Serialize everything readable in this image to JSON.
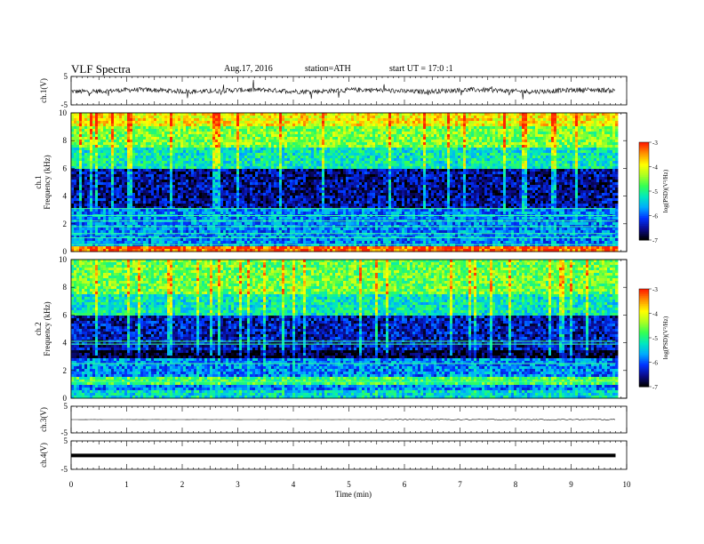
{
  "header": {
    "title": "VLF Spectra",
    "date": "Aug.17, 2016",
    "station": "station=ATH",
    "start": "start UT =  17:0  :1"
  },
  "colors": {
    "colormap": [
      "#000000",
      "#0b0b8c",
      "#0033ff",
      "#00aaff",
      "#00e8c0",
      "#33ff55",
      "#aaff22",
      "#ffff00",
      "#ff9900",
      "#ff2200",
      "#ffffff"
    ]
  },
  "chart_data": [
    {
      "type": "line",
      "name": "ch1-waveform",
      "ylabel": "ch.1(V)",
      "ylim": [
        -5,
        5
      ],
      "yticks": [
        "5",
        "-5"
      ],
      "x_range_min": [
        0,
        9.8
      ],
      "baseline_v": 0,
      "noise_amplitude_v": 1.2
    },
    {
      "type": "heatmap",
      "name": "ch1-spectrogram",
      "ylabel": [
        "ch.1",
        "Frequency (kHz)"
      ],
      "ylim": [
        0,
        10
      ],
      "yticks": [
        "10",
        "8",
        "6",
        "4",
        "2",
        "0"
      ],
      "x_range_min": [
        0,
        9.8
      ],
      "colorbar": {
        "label": "log(PSD)(V²/Hz)",
        "range": [
          -7,
          -3
        ],
        "ticks": [
          "-3",
          "-4",
          "-5",
          "-6",
          "-7"
        ]
      },
      "bands_khz": [
        {
          "from": 0,
          "to": 0.3,
          "level": 0.95
        },
        {
          "from": 3.0,
          "to": 6.0,
          "level": 0.12
        },
        {
          "from": 6.0,
          "to": 7.5,
          "level": 0.45
        },
        {
          "from": 7.5,
          "to": 9.0,
          "level": 0.62
        },
        {
          "from": 9.0,
          "to": 10,
          "level": 0.78
        }
      ],
      "tone_lines_khz": [
        0.5,
        1.0,
        1.3,
        1.8,
        2.2,
        2.6,
        3.1
      ]
    },
    {
      "type": "heatmap",
      "name": "ch2-spectrogram",
      "ylabel": [
        "ch.2",
        "Frequency (kHz)"
      ],
      "ylim": [
        0,
        10
      ],
      "yticks": [
        "10",
        "8",
        "6",
        "4",
        "2",
        "0"
      ],
      "x_range_min": [
        0,
        9.8
      ],
      "colorbar": {
        "label": "log(PSD)(V²/Hz)",
        "range": [
          -7,
          -3
        ],
        "ticks": [
          "-3",
          "-4",
          "-5",
          "-6",
          "-7"
        ]
      },
      "bands_khz": [
        {
          "from": 0,
          "to": 0.5,
          "level": 0.42
        },
        {
          "from": 1.0,
          "to": 1.6,
          "level": 0.55
        },
        {
          "from": 2.8,
          "to": 3.5,
          "level": 0.03
        },
        {
          "from": 3.5,
          "to": 6.0,
          "level": 0.15
        },
        {
          "from": 6.0,
          "to": 7.5,
          "level": 0.45
        },
        {
          "from": 7.5,
          "to": 10,
          "level": 0.6
        }
      ],
      "tone_lines_khz": [
        1.2,
        2.5,
        3.9,
        4.1
      ]
    },
    {
      "type": "line",
      "name": "ch3-waveform",
      "ylabel": "ch.3(V)",
      "ylim": [
        -5,
        5
      ],
      "yticks": [
        "5",
        "-5"
      ],
      "x_range_min": [
        0,
        9.8
      ],
      "baseline_v": 0,
      "noise_amplitude_v": 0.05
    },
    {
      "type": "line",
      "name": "ch4-waveform",
      "ylabel": "ch.4(V)",
      "ylim": [
        -5,
        5
      ],
      "yticks": [
        "5",
        "-5"
      ],
      "x_range_min": [
        0,
        9.8
      ],
      "baseline_v": 0,
      "noise_amplitude_v": 0.2
    }
  ],
  "x_axis": {
    "label": "Time (min)",
    "range": [
      0,
      10
    ],
    "ticks": [
      "0",
      "1",
      "2",
      "3",
      "4",
      "5",
      "6",
      "7",
      "8",
      "9",
      "10"
    ]
  }
}
